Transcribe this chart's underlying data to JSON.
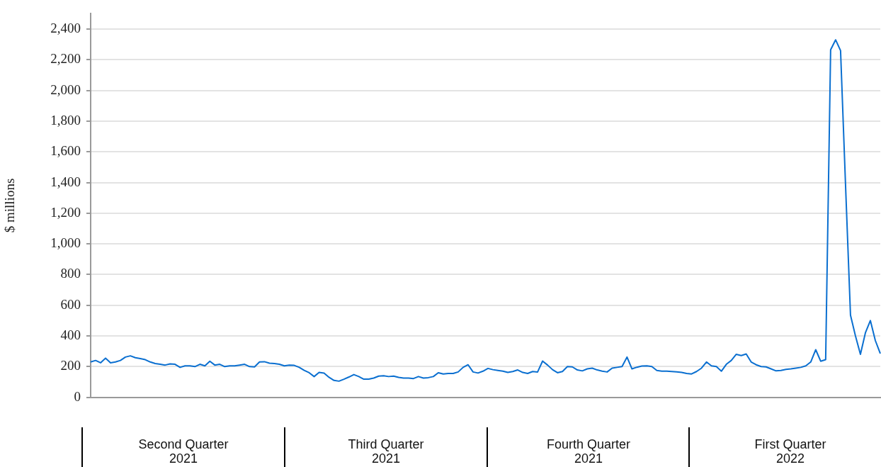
{
  "chart_data": {
    "type": "line",
    "ylabel": "$ millions",
    "color": "#0a6fd0",
    "categories": [
      null,
      null,
      null,
      null,
      null,
      null,
      null,
      null,
      null,
      null,
      null,
      null,
      null,
      null,
      null,
      null,
      null,
      null,
      null,
      null,
      null,
      null,
      null,
      null,
      null,
      null,
      null,
      null,
      null,
      null,
      null,
      null,
      null,
      null,
      null,
      null,
      null,
      null,
      null,
      null,
      null,
      null,
      null,
      null,
      null,
      null,
      null,
      null,
      null,
      null,
      null,
      null,
      null,
      null,
      null,
      null,
      null,
      null,
      null,
      null,
      null,
      null,
      null,
      null,
      null,
      null,
      null,
      null,
      null,
      null,
      null,
      null,
      null,
      null,
      null,
      null,
      null,
      null,
      null,
      null,
      null,
      null,
      null,
      null,
      null,
      null,
      null,
      null,
      null,
      null,
      null,
      null,
      null,
      null,
      null,
      null,
      null,
      null,
      null,
      null,
      null,
      null,
      null,
      null,
      null,
      null,
      null,
      null,
      null,
      null,
      null,
      null,
      null,
      null,
      null,
      null,
      null,
      null,
      null,
      null,
      null,
      null,
      null,
      null,
      null,
      null,
      null,
      null,
      null,
      null,
      null,
      null,
      null,
      null,
      null,
      null,
      null,
      null,
      null,
      null,
      null,
      null,
      null,
      null,
      null,
      null,
      null,
      null,
      null,
      null,
      null,
      null,
      null,
      null,
      null,
      null,
      null,
      null,
      null,
      null
    ],
    "values": [
      230,
      240,
      225,
      255,
      225,
      230,
      240,
      262,
      270,
      258,
      252,
      245,
      230,
      220,
      215,
      210,
      218,
      215,
      195,
      205,
      205,
      200,
      215,
      205,
      235,
      210,
      215,
      200,
      205,
      205,
      210,
      215,
      200,
      198,
      230,
      232,
      222,
      220,
      215,
      205,
      210,
      208,
      195,
      175,
      160,
      135,
      162,
      158,
      130,
      110,
      105,
      118,
      132,
      148,
      135,
      118,
      118,
      125,
      138,
      140,
      135,
      138,
      130,
      125,
      125,
      122,
      135,
      125,
      128,
      135,
      160,
      152,
      155,
      155,
      165,
      195,
      212,
      165,
      158,
      170,
      188,
      180,
      175,
      170,
      162,
      168,
      178,
      162,
      155,
      168,
      165,
      236,
      210,
      180,
      160,
      168,
      200,
      198,
      178,
      172,
      185,
      190,
      178,
      170,
      165,
      190,
      195,
      200,
      262,
      185,
      196,
      204,
      205,
      200,
      175,
      170,
      170,
      168,
      166,
      162,
      155,
      152,
      168,
      190,
      230,
      205,
      200,
      170,
      215,
      240,
      280,
      272,
      282,
      230,
      212,
      200,
      198,
      185,
      172,
      175,
      182,
      185,
      190,
      195,
      205,
      230,
      310,
      235,
      245,
      2265,
      2330,
      2260,
      1385,
      535,
      400,
      280,
      420,
      500,
      370,
      285
    ],
    "ylim": [
      0,
      2500
    ],
    "yticks": [
      0,
      200,
      400,
      600,
      800,
      {
        "value": 1000,
        "label": "1,000"
      },
      {
        "value": 1200,
        "label": "1,200"
      },
      {
        "value": 1400,
        "label": "1,400"
      },
      {
        "value": 1600,
        "label": "1,600"
      },
      {
        "value": 1800,
        "label": "1,800"
      },
      {
        "value": 2000,
        "label": "2,000"
      },
      {
        "value": 2200,
        "label": "2,200"
      },
      {
        "value": 2400,
        "label": "2,400"
      }
    ],
    "grid": "y",
    "legend": false,
    "marker": "none",
    "line_style": "solid",
    "tick_labels": "y",
    "annotations": [
      "Second Quarter\n2021",
      "Third Quarter\n2021",
      "Fourth Quarter\n2021",
      "First Quarter\n2022"
    ]
  }
}
